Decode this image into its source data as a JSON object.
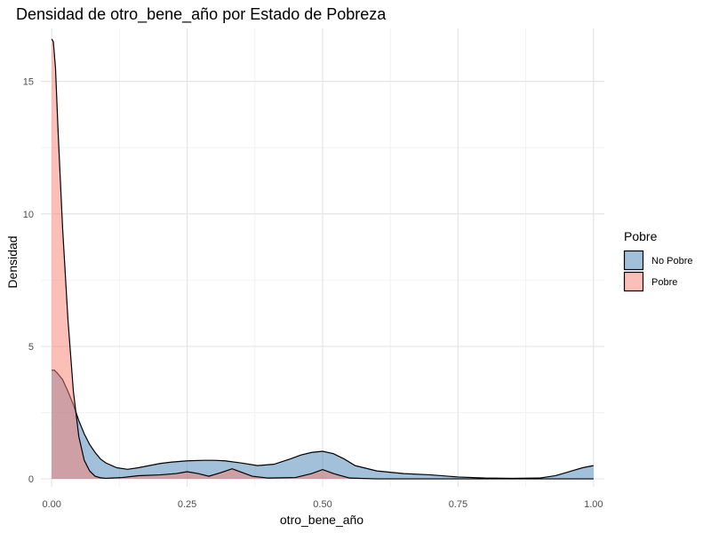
{
  "chart_data": {
    "type": "area",
    "subtype": "density",
    "title": "Densidad de otro_bene_año por Estado de Pobreza",
    "xlabel": "otro_bene_año",
    "ylabel": "Densidad",
    "xlim": [
      -0.02,
      1.02
    ],
    "ylim": [
      -0.3,
      17.0
    ],
    "x_ticks": [
      0.0,
      0.25,
      0.5,
      0.75,
      1.0
    ],
    "x_tick_labels": [
      "0.00",
      "0.25",
      "0.50",
      "0.75",
      "1.00"
    ],
    "y_ticks": [
      0,
      5,
      10,
      15
    ],
    "y_tick_labels": [
      "0",
      "5",
      "10",
      "15"
    ],
    "grid": true,
    "legend": {
      "title": "Pobre",
      "position": "right",
      "entries": [
        "No Pobre",
        "Pobre"
      ]
    },
    "series": [
      {
        "name": "No Pobre",
        "color": "#4682B4",
        "x": [
          0.0,
          0.005,
          0.01,
          0.02,
          0.03,
          0.04,
          0.05,
          0.06,
          0.07,
          0.08,
          0.09,
          0.1,
          0.12,
          0.14,
          0.16,
          0.18,
          0.2,
          0.22,
          0.25,
          0.28,
          0.3,
          0.32,
          0.35,
          0.38,
          0.41,
          0.44,
          0.46,
          0.48,
          0.5,
          0.52,
          0.54,
          0.56,
          0.6,
          0.65,
          0.7,
          0.75,
          0.8,
          0.85,
          0.9,
          0.93,
          0.96,
          0.98,
          1.0
        ],
        "y": [
          4.1,
          4.1,
          4.0,
          3.75,
          3.3,
          2.8,
          2.2,
          1.7,
          1.3,
          1.0,
          0.75,
          0.6,
          0.42,
          0.36,
          0.42,
          0.5,
          0.58,
          0.63,
          0.68,
          0.7,
          0.7,
          0.68,
          0.6,
          0.5,
          0.55,
          0.75,
          0.9,
          1.0,
          1.04,
          0.95,
          0.75,
          0.5,
          0.3,
          0.2,
          0.15,
          0.07,
          0.03,
          0.02,
          0.03,
          0.12,
          0.3,
          0.42,
          0.5
        ]
      },
      {
        "name": "Pobre",
        "color": "#FA8072",
        "x": [
          0.0,
          0.003,
          0.007,
          0.012,
          0.02,
          0.03,
          0.04,
          0.05,
          0.06,
          0.07,
          0.08,
          0.09,
          0.1,
          0.13,
          0.16,
          0.2,
          0.23,
          0.25,
          0.27,
          0.29,
          0.31,
          0.333,
          0.35,
          0.37,
          0.4,
          0.45,
          0.48,
          0.5,
          0.52,
          0.55,
          0.6,
          0.7,
          0.8,
          0.9,
          1.0
        ],
        "y": [
          16.6,
          16.5,
          15.5,
          13.0,
          9.5,
          6.0,
          3.3,
          1.6,
          0.7,
          0.3,
          0.1,
          0.04,
          0.02,
          0.05,
          0.12,
          0.15,
          0.2,
          0.27,
          0.2,
          0.1,
          0.22,
          0.38,
          0.25,
          0.1,
          0.03,
          0.05,
          0.2,
          0.35,
          0.2,
          0.03,
          0.0,
          0.0,
          0.0,
          0.0,
          0.0
        ]
      }
    ]
  }
}
